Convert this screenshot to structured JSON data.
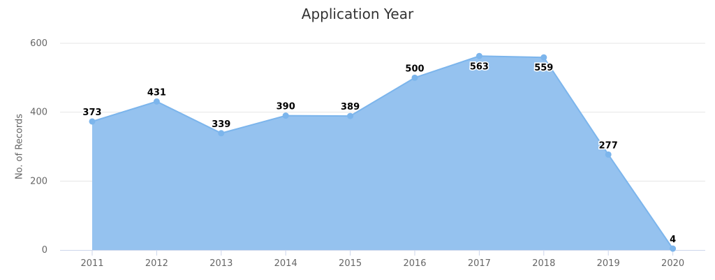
{
  "chart_data": {
    "type": "area",
    "title": "Application Year",
    "ylabel": "No. of Records",
    "xlabel": "",
    "categories": [
      "2011",
      "2012",
      "2013",
      "2014",
      "2015",
      "2016",
      "2017",
      "2018",
      "2019",
      "2020"
    ],
    "series": [
      {
        "values": [
          373,
          431,
          339,
          390,
          389,
          500,
          563,
          559,
          277,
          4
        ],
        "color": "#7cb5ec"
      }
    ],
    "ylim": [
      0,
      600
    ],
    "yticks": [
      0,
      200,
      400,
      600
    ],
    "grid": true,
    "legend": "none",
    "colors": {
      "area_fill": "#95c2ef",
      "line": "#7cb5ec",
      "marker": "#7cb5ec",
      "grid": "#e6e6e6",
      "axis": "#ccd6eb"
    }
  }
}
